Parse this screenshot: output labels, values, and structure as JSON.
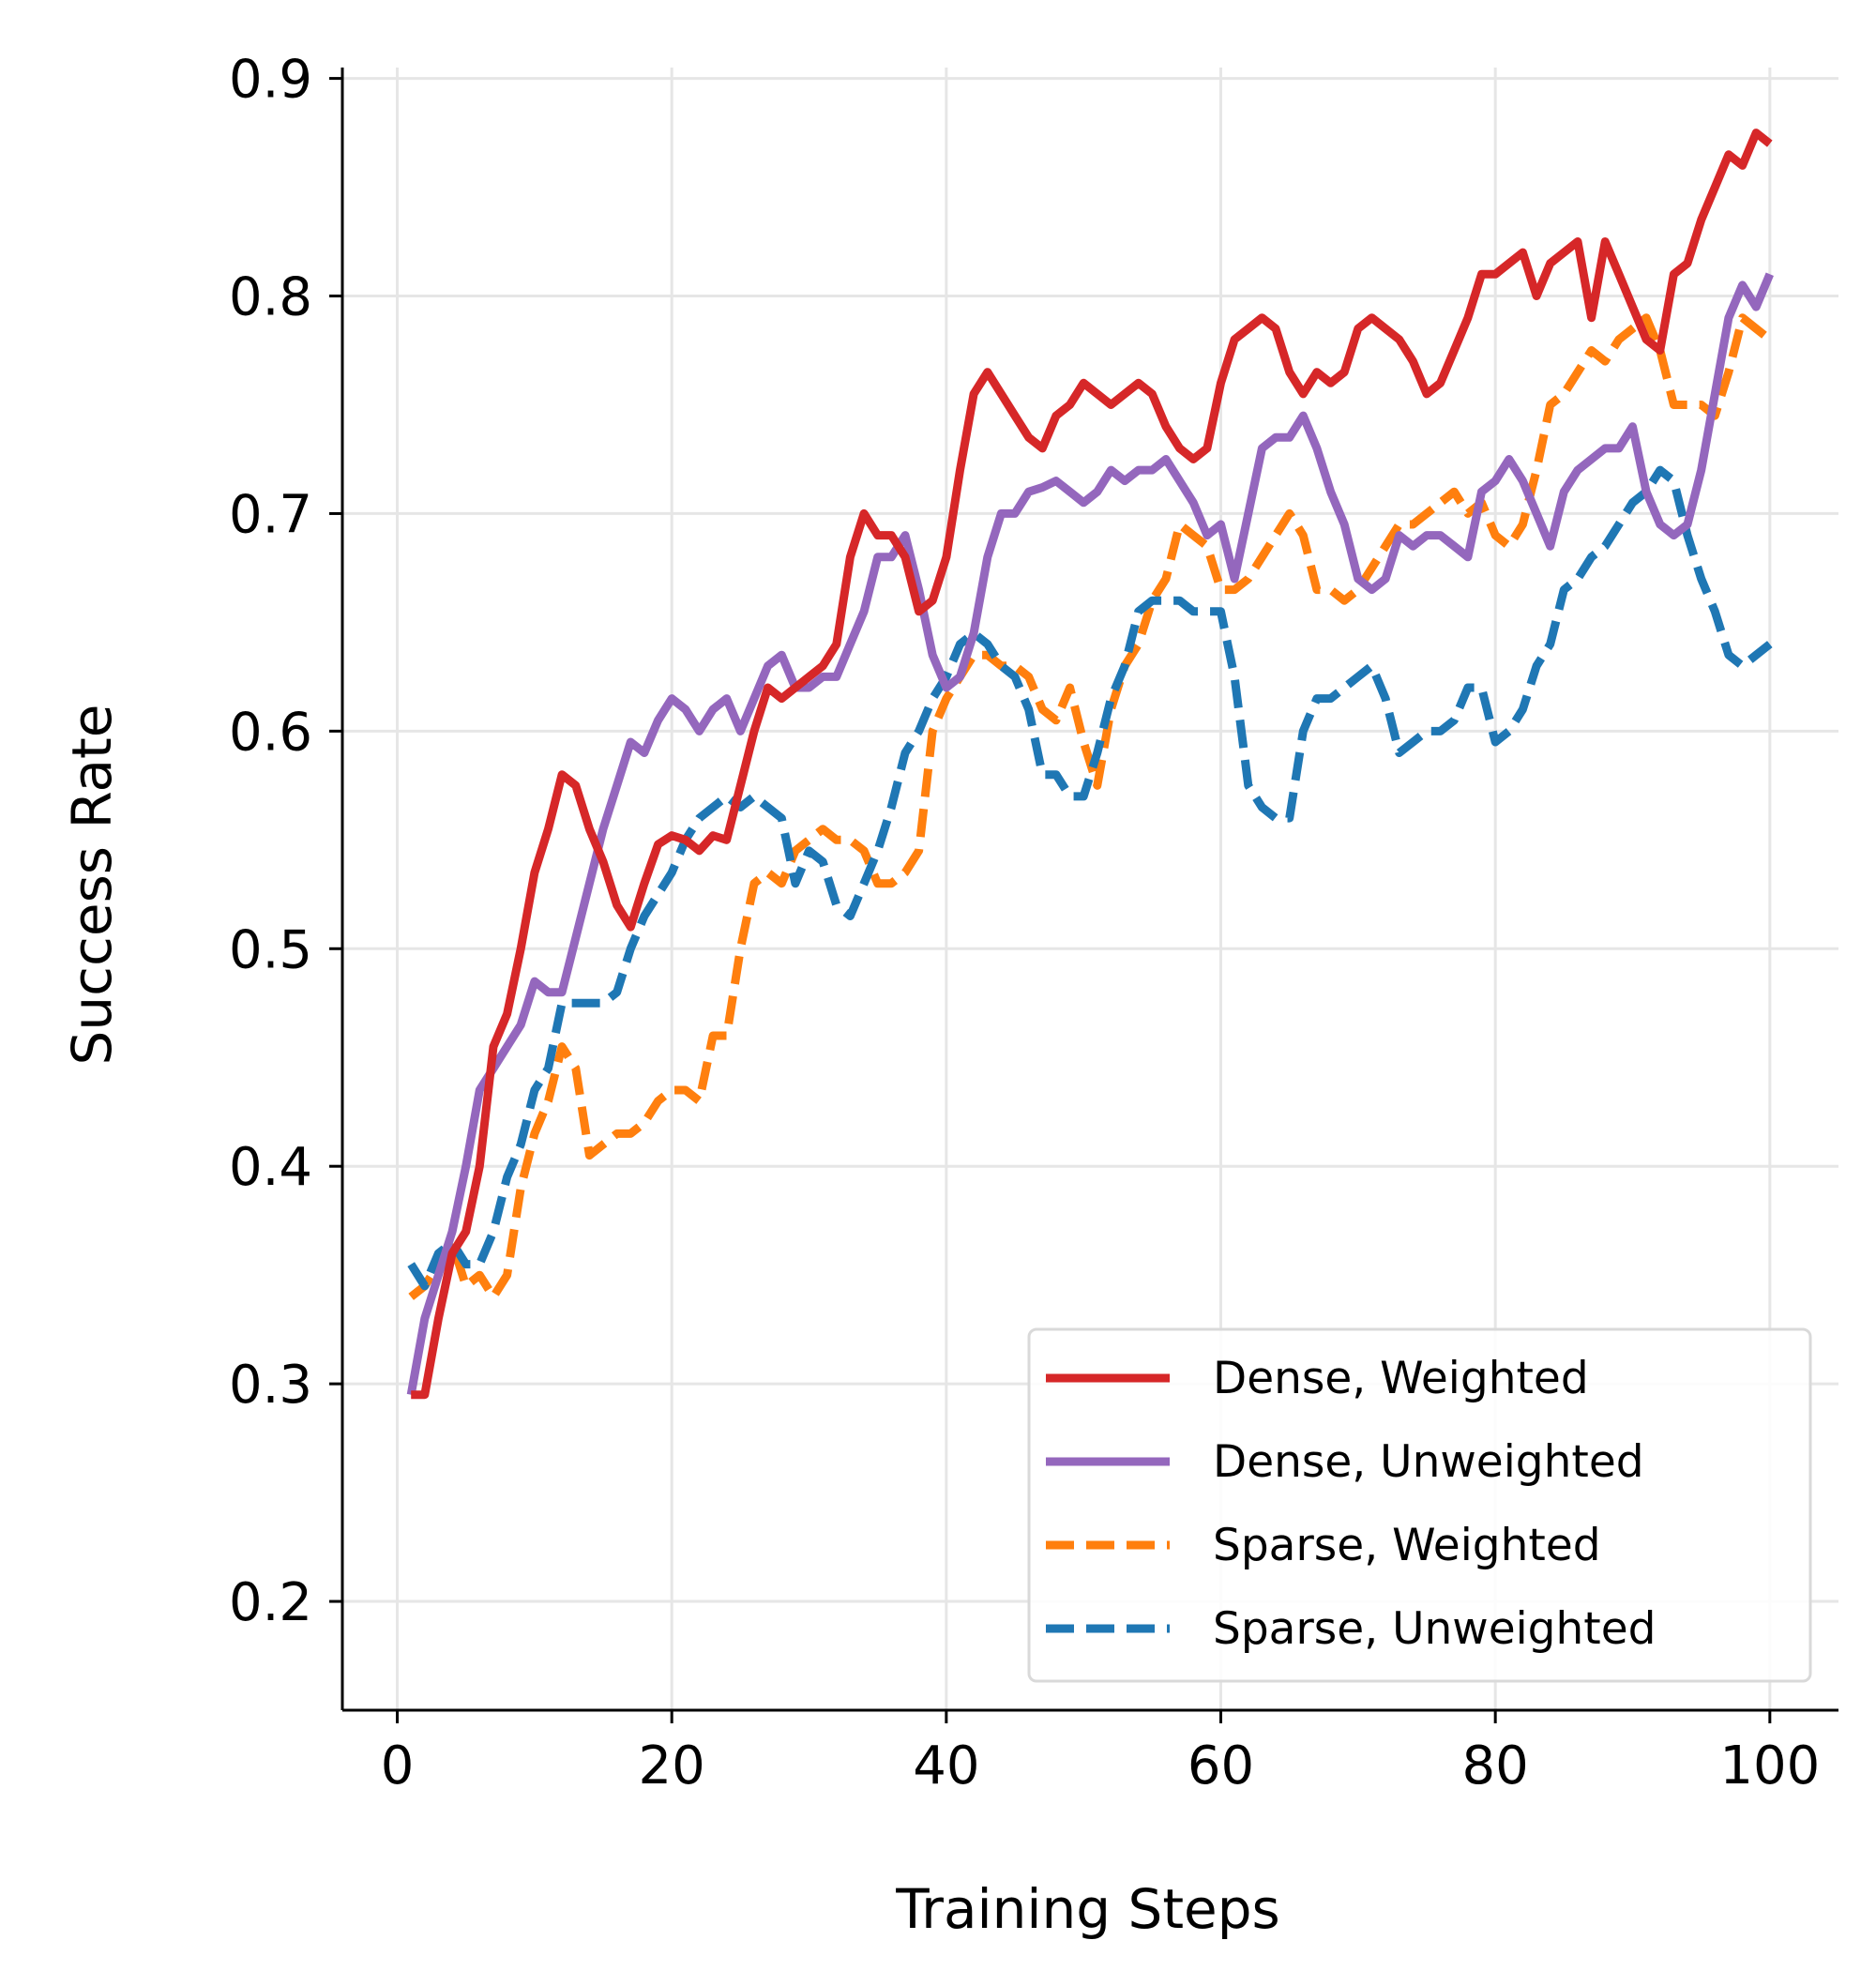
{
  "chart_data": {
    "type": "line",
    "title": "",
    "xlabel": "Training Steps",
    "ylabel": "Success Rate",
    "xlim": [
      -4,
      105
    ],
    "ylim": [
      0.15,
      0.905
    ],
    "xticks": [
      0,
      20,
      40,
      60,
      80,
      100
    ],
    "xtick_labels": [
      "0",
      "20",
      "40",
      "60",
      "80",
      "100"
    ],
    "yticks": [
      0.2,
      0.3,
      0.4,
      0.5,
      0.6,
      0.7,
      0.8,
      0.9
    ],
    "ytick_labels": [
      "0.2",
      "0.3",
      "0.4",
      "0.5",
      "0.6",
      "0.7",
      "0.8",
      "0.9"
    ],
    "grid": true,
    "legend_position": "lower-right",
    "series": [
      {
        "name": "Dense, Weighted",
        "color": "#d62728",
        "style": "solid",
        "x": [
          1,
          2,
          3,
          4,
          5,
          6,
          7,
          8,
          9,
          10,
          11,
          12,
          13,
          14,
          15,
          16,
          17,
          18,
          19,
          20,
          21,
          22,
          23,
          24,
          25,
          26,
          27,
          28,
          29,
          30,
          31,
          32,
          33,
          34,
          35,
          36,
          37,
          38,
          39,
          40,
          41,
          42,
          43,
          44,
          45,
          46,
          47,
          48,
          49,
          50,
          51,
          52,
          53,
          54,
          55,
          56,
          57,
          58,
          59,
          60,
          61,
          62,
          63,
          64,
          65,
          66,
          67,
          68,
          69,
          70,
          71,
          72,
          73,
          74,
          75,
          76,
          77,
          78,
          79,
          80,
          81,
          82,
          83,
          84,
          85,
          86,
          87,
          88,
          89,
          90,
          91,
          92,
          93,
          94,
          95,
          96,
          97,
          98,
          99,
          100
        ],
        "y": [
          0.295,
          0.295,
          0.33,
          0.36,
          0.37,
          0.4,
          0.455,
          0.47,
          0.5,
          0.535,
          0.555,
          0.58,
          0.575,
          0.555,
          0.54,
          0.52,
          0.51,
          0.53,
          0.548,
          0.552,
          0.55,
          0.545,
          0.552,
          0.55,
          0.575,
          0.6,
          0.62,
          0.615,
          0.62,
          0.625,
          0.63,
          0.64,
          0.68,
          0.7,
          0.69,
          0.69,
          0.68,
          0.655,
          0.66,
          0.68,
          0.72,
          0.755,
          0.765,
          0.755,
          0.745,
          0.735,
          0.73,
          0.745,
          0.75,
          0.76,
          0.755,
          0.75,
          0.755,
          0.76,
          0.755,
          0.74,
          0.73,
          0.725,
          0.73,
          0.76,
          0.78,
          0.785,
          0.79,
          0.785,
          0.765,
          0.755,
          0.765,
          0.76,
          0.765,
          0.785,
          0.79,
          0.785,
          0.78,
          0.77,
          0.755,
          0.76,
          0.775,
          0.79,
          0.81,
          0.81,
          0.815,
          0.82,
          0.8,
          0.815,
          0.82,
          0.825,
          0.79,
          0.825,
          0.81,
          0.795,
          0.78,
          0.775,
          0.81,
          0.815,
          0.835,
          0.85,
          0.865,
          0.86,
          0.875,
          0.87
        ]
      },
      {
        "name": "Dense, Unweighted",
        "color": "#9467bd",
        "style": "solid",
        "x": [
          1,
          2,
          3,
          4,
          5,
          6,
          7,
          8,
          9,
          10,
          11,
          12,
          13,
          14,
          15,
          16,
          17,
          18,
          19,
          20,
          21,
          22,
          23,
          24,
          25,
          26,
          27,
          28,
          29,
          30,
          31,
          32,
          33,
          34,
          35,
          36,
          37,
          38,
          39,
          40,
          41,
          42,
          43,
          44,
          45,
          46,
          47,
          48,
          49,
          50,
          51,
          52,
          53,
          54,
          55,
          56,
          57,
          58,
          59,
          60,
          61,
          62,
          63,
          64,
          65,
          66,
          67,
          68,
          69,
          70,
          71,
          72,
          73,
          74,
          75,
          76,
          77,
          78,
          79,
          80,
          81,
          82,
          83,
          84,
          85,
          86,
          87,
          88,
          89,
          90,
          91,
          92,
          93,
          94,
          95,
          96,
          97,
          98,
          99,
          100
        ],
        "y": [
          0.295,
          0.33,
          0.35,
          0.37,
          0.4,
          0.435,
          0.445,
          0.455,
          0.465,
          0.485,
          0.48,
          0.48,
          0.505,
          0.53,
          0.555,
          0.575,
          0.595,
          0.59,
          0.605,
          0.615,
          0.61,
          0.6,
          0.61,
          0.615,
          0.6,
          0.615,
          0.63,
          0.635,
          0.62,
          0.62,
          0.625,
          0.625,
          0.64,
          0.655,
          0.68,
          0.68,
          0.69,
          0.665,
          0.635,
          0.62,
          0.625,
          0.645,
          0.68,
          0.7,
          0.7,
          0.71,
          0.712,
          0.715,
          0.71,
          0.705,
          0.71,
          0.72,
          0.715,
          0.72,
          0.72,
          0.725,
          0.715,
          0.705,
          0.69,
          0.695,
          0.67,
          0.7,
          0.73,
          0.735,
          0.735,
          0.745,
          0.73,
          0.71,
          0.695,
          0.67,
          0.665,
          0.67,
          0.69,
          0.685,
          0.69,
          0.69,
          0.685,
          0.68,
          0.71,
          0.715,
          0.725,
          0.715,
          0.7,
          0.685,
          0.71,
          0.72,
          0.725,
          0.73,
          0.73,
          0.74,
          0.71,
          0.695,
          0.69,
          0.695,
          0.72,
          0.755,
          0.79,
          0.805,
          0.795,
          0.81
        ]
      },
      {
        "name": "Sparse, Weighted",
        "color": "#ff7f0e",
        "style": "dashed",
        "x": [
          1,
          2,
          3,
          4,
          5,
          6,
          7,
          8,
          9,
          10,
          11,
          12,
          13,
          14,
          15,
          16,
          17,
          18,
          19,
          20,
          21,
          22,
          23,
          24,
          25,
          26,
          27,
          28,
          29,
          30,
          31,
          32,
          33,
          34,
          35,
          36,
          37,
          38,
          39,
          40,
          41,
          42,
          43,
          44,
          45,
          46,
          47,
          48,
          49,
          50,
          51,
          52,
          53,
          54,
          55,
          56,
          57,
          58,
          59,
          60,
          61,
          62,
          63,
          64,
          65,
          66,
          67,
          68,
          69,
          70,
          71,
          72,
          73,
          74,
          75,
          76,
          77,
          78,
          79,
          80,
          81,
          82,
          83,
          84,
          85,
          86,
          87,
          88,
          89,
          90,
          91,
          92,
          93,
          94,
          95,
          96,
          97,
          98,
          99,
          100
        ],
        "y": [
          0.34,
          0.345,
          0.355,
          0.365,
          0.345,
          0.35,
          0.34,
          0.35,
          0.39,
          0.415,
          0.43,
          0.455,
          0.445,
          0.405,
          0.41,
          0.415,
          0.415,
          0.42,
          0.43,
          0.435,
          0.435,
          0.43,
          0.46,
          0.46,
          0.5,
          0.53,
          0.535,
          0.53,
          0.545,
          0.55,
          0.555,
          0.55,
          0.55,
          0.545,
          0.53,
          0.53,
          0.535,
          0.545,
          0.6,
          0.615,
          0.625,
          0.635,
          0.635,
          0.63,
          0.63,
          0.625,
          0.61,
          0.605,
          0.62,
          0.595,
          0.575,
          0.61,
          0.63,
          0.64,
          0.66,
          0.67,
          0.695,
          0.69,
          0.685,
          0.665,
          0.665,
          0.67,
          0.68,
          0.69,
          0.7,
          0.69,
          0.665,
          0.665,
          0.66,
          0.665,
          0.675,
          0.685,
          0.695,
          0.695,
          0.7,
          0.705,
          0.71,
          0.7,
          0.705,
          0.69,
          0.685,
          0.695,
          0.72,
          0.75,
          0.755,
          0.765,
          0.775,
          0.77,
          0.78,
          0.785,
          0.79,
          0.775,
          0.75,
          0.75,
          0.75,
          0.745,
          0.765,
          0.79,
          0.785,
          0.78
        ]
      },
      {
        "name": "Sparse, Unweighted",
        "color": "#1f77b4",
        "style": "dashed",
        "x": [
          1,
          2,
          3,
          4,
          5,
          6,
          7,
          8,
          9,
          10,
          11,
          12,
          13,
          14,
          15,
          16,
          17,
          18,
          19,
          20,
          21,
          22,
          23,
          24,
          25,
          26,
          27,
          28,
          29,
          30,
          31,
          32,
          33,
          34,
          35,
          36,
          37,
          38,
          39,
          40,
          41,
          42,
          43,
          44,
          45,
          46,
          47,
          48,
          49,
          50,
          51,
          52,
          53,
          54,
          55,
          56,
          57,
          58,
          59,
          60,
          61,
          62,
          63,
          64,
          65,
          66,
          67,
          68,
          69,
          70,
          71,
          72,
          73,
          74,
          75,
          76,
          77,
          78,
          79,
          80,
          81,
          82,
          83,
          84,
          85,
          86,
          87,
          88,
          89,
          90,
          91,
          92,
          93,
          94,
          95,
          96,
          97,
          98,
          99,
          100
        ],
        "y": [
          0.355,
          0.345,
          0.36,
          0.365,
          0.355,
          0.355,
          0.37,
          0.395,
          0.41,
          0.435,
          0.445,
          0.475,
          0.475,
          0.475,
          0.475,
          0.48,
          0.5,
          0.515,
          0.525,
          0.535,
          0.55,
          0.56,
          0.565,
          0.57,
          0.565,
          0.57,
          0.565,
          0.56,
          0.53,
          0.545,
          0.54,
          0.52,
          0.515,
          0.53,
          0.545,
          0.565,
          0.59,
          0.6,
          0.615,
          0.625,
          0.64,
          0.645,
          0.64,
          0.63,
          0.625,
          0.61,
          0.58,
          0.58,
          0.57,
          0.57,
          0.59,
          0.615,
          0.63,
          0.655,
          0.66,
          0.66,
          0.66,
          0.655,
          0.655,
          0.655,
          0.625,
          0.575,
          0.565,
          0.56,
          0.56,
          0.6,
          0.615,
          0.615,
          0.62,
          0.625,
          0.63,
          0.615,
          0.59,
          0.595,
          0.6,
          0.6,
          0.605,
          0.62,
          0.62,
          0.595,
          0.6,
          0.61,
          0.63,
          0.64,
          0.665,
          0.67,
          0.68,
          0.685,
          0.695,
          0.705,
          0.71,
          0.72,
          0.715,
          0.69,
          0.67,
          0.655,
          0.635,
          0.63,
          0.635,
          0.64
        ]
      }
    ]
  }
}
